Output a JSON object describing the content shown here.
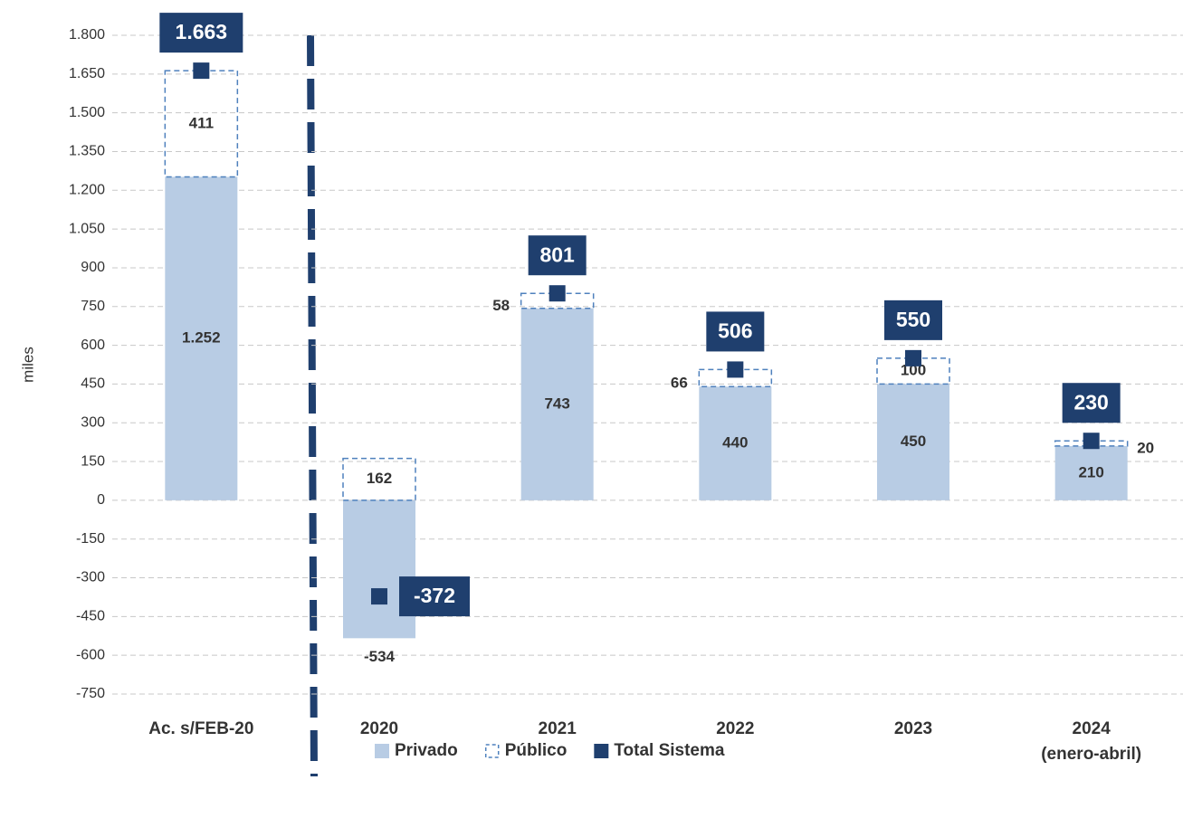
{
  "chart_data": {
    "type": "bar",
    "stacked": true,
    "y_label": "miles",
    "categories": [
      "Ac. s/FEB-20",
      "2020",
      "2021",
      "2022",
      "2023",
      "2024\n(enero-abril)"
    ],
    "series": [
      {
        "name": "Privado",
        "color": "#b8cce4",
        "values": [
          1252,
          -534,
          743,
          440,
          450,
          210
        ],
        "value_labels": [
          "1.252",
          "-534",
          "743",
          "440",
          "450",
          "210"
        ]
      },
      {
        "name": "Público",
        "color": "#4f81bd",
        "values": [
          411,
          162,
          58,
          66,
          100,
          20
        ]
      },
      {
        "name": "Total Sistema",
        "color": "#1f3f6e",
        "type": "marker",
        "values": [
          1663,
          -372,
          801,
          506,
          550,
          230
        ],
        "value_labels": [
          "1.663",
          "-372",
          "801",
          "506",
          "550",
          "230"
        ]
      }
    ],
    "ylim": [
      -750,
      1800
    ],
    "yticks": [
      {
        "value": 1800,
        "label": "1.800"
      },
      {
        "value": 1650,
        "label": "1.650"
      },
      {
        "value": 1500,
        "label": "1.500"
      },
      {
        "value": 1350,
        "label": "1.350"
      },
      {
        "value": 1200,
        "label": "1.200"
      },
      {
        "value": 1050,
        "label": "1.050"
      },
      900,
      750,
      600,
      450,
      300,
      150,
      0,
      -150,
      -300,
      -450,
      -600,
      -750
    ],
    "grid": true,
    "legend": "bottom"
  }
}
